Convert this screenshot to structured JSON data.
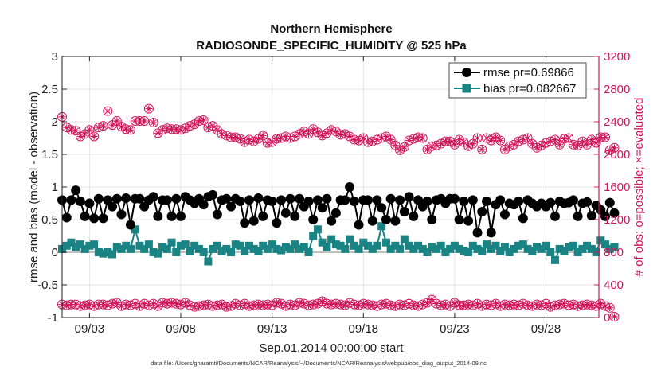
{
  "chart_data": {
    "type": "line",
    "title": "Northern Hemisphere",
    "subtitle": "RADIOSONDE_SPECIFIC_HUMIDITY @ 525 hPa",
    "xlabel": "Sep.01,2014 00:00:00 start",
    "ylabel": "rmse and bias (model - observation)",
    "ylabel_right": "# of obs: o=possible; ×=evaluated",
    "footnote": "data file: /Users/gharamti/Documents/NCAR/Reanalysis/~/Documents/NCAR/Reanalysis/webpub/obs_diag_output_2014-09.nc",
    "x_tick_labels": [
      "09/03",
      "09/08",
      "09/13",
      "09/18",
      "09/23",
      "09/28"
    ],
    "x_tick_days": [
      3,
      8,
      13,
      18,
      23,
      28
    ],
    "xlim": [
      1.5,
      30.9
    ],
    "ylim": [
      -1,
      3
    ],
    "y_ticks": [
      -1,
      -0.5,
      0,
      0.5,
      1,
      1.5,
      2,
      2.5,
      3
    ],
    "y_tick_labels": [
      "-1",
      "-0.5",
      "0",
      "0.5",
      "1",
      "1.5",
      "2",
      "2.5",
      "3"
    ],
    "ylim_right": [
      0,
      3200
    ],
    "y_right_ticks": [
      0,
      400,
      800,
      1200,
      1600,
      2000,
      2400,
      2800,
      3200
    ],
    "y_right_tick_labels": [
      "0",
      "400",
      "800",
      "1200",
      "1600",
      "2000",
      "2400",
      "2800",
      "3200"
    ],
    "grid": true,
    "legend_position": "top-right",
    "zero_line": true,
    "colors": {
      "rmse": "#000000",
      "bias": "#1a8484",
      "obs": "#d1145a",
      "grid": "#e4e4e4",
      "zero": "#9a9a9a"
    },
    "series": [
      {
        "name": "rmse pr=0.69866",
        "axis": "left",
        "values": [
          0.8,
          0.53,
          0.8,
          0.95,
          0.78,
          0.55,
          0.75,
          0.52,
          0.82,
          0.52,
          0.8,
          0.7,
          0.82,
          0.58,
          0.83,
          0.42,
          0.82,
          0.82,
          0.7,
          0.8,
          0.85,
          0.55,
          0.8,
          0.8,
          0.55,
          0.82,
          0.55,
          0.85,
          0.8,
          0.75,
          0.82,
          0.73,
          0.85,
          0.88,
          0.58,
          0.8,
          0.82,
          0.7,
          0.82,
          0.78,
          0.45,
          0.8,
          0.48,
          0.83,
          0.55,
          0.8,
          0.78,
          0.45,
          0.8,
          0.6,
          0.82,
          0.55,
          0.82,
          0.7,
          0.78,
          0.5,
          0.8,
          0.68,
          0.82,
          0.48,
          0.6,
          0.8,
          0.8,
          1.0,
          0.78,
          0.42,
          0.8,
          0.8,
          0.48,
          0.8,
          0.68,
          0.5,
          0.82,
          0.48,
          0.8,
          0.62,
          0.85,
          0.55,
          0.8,
          0.7,
          0.78,
          0.5,
          0.8,
          0.82,
          0.75,
          0.82,
          0.82,
          0.5,
          0.78,
          0.48,
          0.8,
          0.3,
          0.62,
          0.78,
          0.3,
          0.73,
          0.8,
          0.58,
          0.75,
          0.73,
          0.78,
          0.52,
          0.8,
          0.75,
          0.7,
          0.75,
          0.7,
          0.76,
          0.55,
          0.78,
          0.75,
          0.76,
          0.8,
          0.55,
          0.75,
          0.77,
          0.56,
          0.72,
          0.65,
          0.55,
          0.76,
          0.6
        ],
        "marker": "circle"
      },
      {
        "name": "bias pr=0.082667",
        "axis": "left",
        "values": [
          0.05,
          0.1,
          0.15,
          0.08,
          0.12,
          0.05,
          0.1,
          0.12,
          0.0,
          -0.02,
          0.0,
          -0.03,
          0.08,
          0.05,
          0.1,
          0.05,
          0.35,
          0.1,
          0.05,
          0.12,
          0.0,
          -0.02,
          0.08,
          0.05,
          0.15,
          0.0,
          0.1,
          0.12,
          0.02,
          0.1,
          0.05,
          0.0,
          -0.14,
          0.05,
          0.1,
          0.02,
          0.05,
          0.0,
          0.12,
          0.1,
          0.02,
          0.1,
          0.05,
          0.02,
          0.1,
          0.05,
          0.12,
          0.05,
          0.03,
          0.08,
          0.05,
          0.12,
          0.05,
          0.08,
          0.0,
          0.25,
          0.35,
          0.15,
          0.08,
          0.2,
          0.12,
          0.1,
          0.05,
          0.2,
          0.1,
          0.05,
          0.15,
          0.1,
          0.05,
          0.1,
          0.4,
          0.15,
          0.05,
          0.1,
          0.05,
          0.2,
          0.1,
          0.05,
          0.1,
          0.05,
          0.0,
          0.08,
          0.05,
          0.1,
          0.0,
          0.05,
          0.1,
          0.05,
          0.02,
          0.0,
          0.1,
          0.05,
          0.02,
          0.12,
          0.05,
          0.1,
          0.02,
          0.08,
          0.0,
          0.05,
          0.1,
          0.12,
          0.05,
          0.02,
          0.08,
          0.05,
          0.1,
          0.0,
          -0.12,
          0.05,
          0.02,
          0.08,
          0.1,
          0.0,
          0.05,
          0.1,
          0.05,
          0.0,
          0.18,
          0.12,
          0.05,
          0.08
        ],
        "marker": "square"
      },
      {
        "name": "obs possible",
        "axis": "right",
        "values": [
          2460,
          2330,
          2300,
          2290,
          2220,
          2250,
          2300,
          2220,
          2330,
          2350,
          2530,
          2360,
          2410,
          2340,
          2310,
          2300,
          2410,
          2410,
          2410,
          2560,
          2390,
          2260,
          2300,
          2320,
          2310,
          2310,
          2300,
          2320,
          2350,
          2370,
          2410,
          2420,
          2330,
          2350,
          2300,
          2250,
          2230,
          2210,
          2210,
          2190,
          2150,
          2180,
          2160,
          2190,
          2230,
          2140,
          2150,
          2190,
          2200,
          2220,
          2200,
          2220,
          2250,
          2280,
          2250,
          2310,
          2270,
          2230,
          2260,
          2300,
          2280,
          2240,
          2250,
          2220,
          2180,
          2170,
          2200,
          2150,
          2160,
          2180,
          2200,
          2220,
          2180,
          2110,
          2050,
          2090,
          2170,
          2190,
          2210,
          2200,
          2060,
          2100,
          2110,
          2130,
          2160,
          2160,
          2120,
          2180,
          2150,
          2100,
          2130,
          2200,
          2060,
          2200,
          2170,
          2210,
          2170,
          2060,
          2100,
          2120,
          2160,
          2180,
          2200,
          2130,
          2080,
          2110,
          2140,
          2160,
          2180,
          2120,
          2190,
          2200,
          2120,
          2110,
          2160,
          2120,
          2180,
          2140,
          2210,
          2210,
          2050,
          2080
        ],
        "marker": "circle-star"
      },
      {
        "name": "obs evaluated",
        "axis": "right",
        "values": [
          160,
          150,
          160,
          160,
          140,
          150,
          160,
          140,
          160,
          160,
          150,
          170,
          180,
          140,
          160,
          150,
          170,
          140,
          170,
          150,
          170,
          140,
          180,
          170,
          180,
          170,
          160,
          180,
          150,
          130,
          140,
          150,
          160,
          140,
          150,
          160,
          130,
          140,
          170,
          150,
          170,
          140,
          150,
          160,
          150,
          160,
          150,
          180,
          170,
          140,
          160,
          150,
          180,
          170,
          150,
          160,
          170,
          200,
          170,
          160,
          170,
          160,
          150,
          180,
          160,
          150,
          170,
          160,
          150,
          140,
          160,
          170,
          150,
          140,
          160,
          150,
          170,
          150,
          140,
          160,
          180,
          220,
          170,
          150,
          160,
          140,
          180,
          150,
          150,
          160,
          150,
          170,
          140,
          160,
          150,
          170,
          140,
          160,
          150,
          160,
          150,
          170,
          150,
          140,
          160,
          150,
          170,
          130,
          150,
          160,
          170,
          150,
          160,
          140,
          150,
          160,
          150,
          140,
          170,
          140,
          120,
          10
        ],
        "marker": "circle-star"
      }
    ]
  }
}
